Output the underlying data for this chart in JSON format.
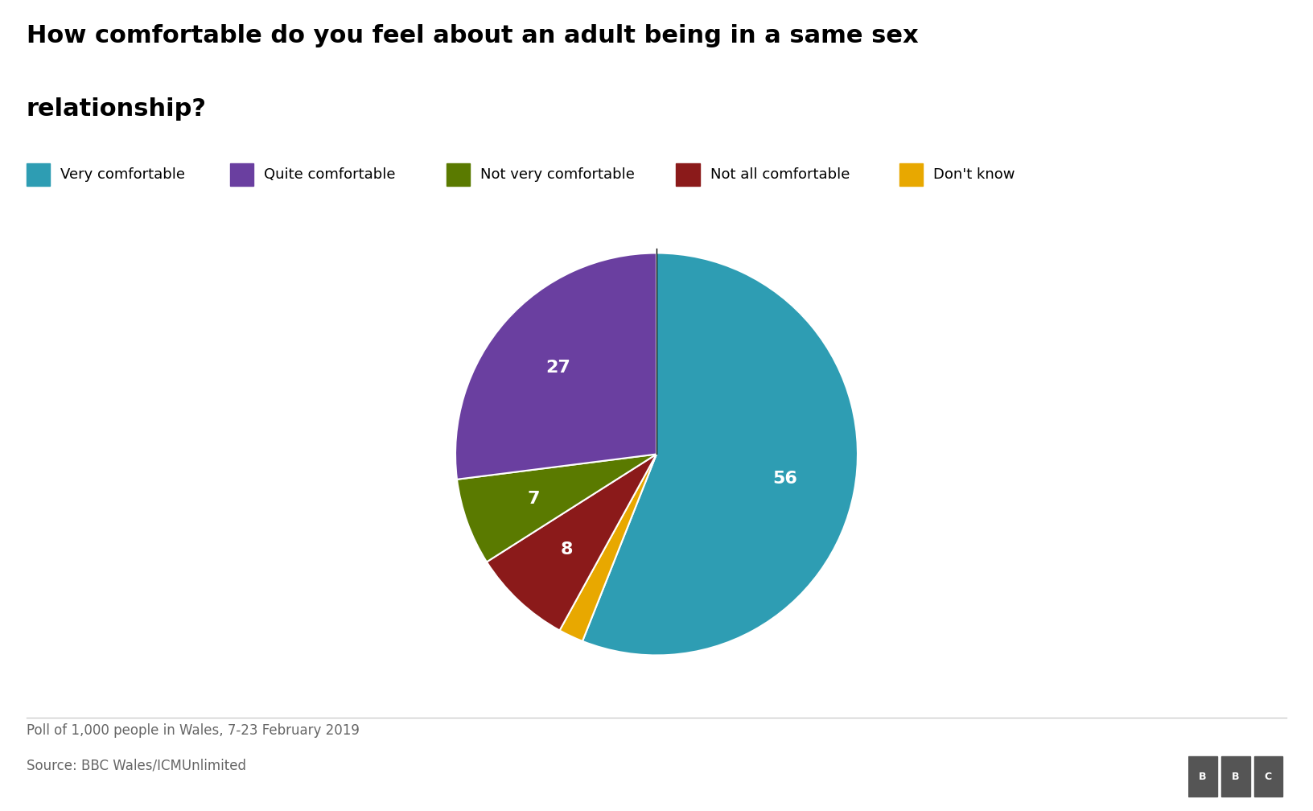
{
  "title_line1": "How comfortable do you feel about an adult being in a same sex",
  "title_line2": "relationship?",
  "labels": [
    "Very comfortable",
    "Quite comfortable",
    "Not very comfortable",
    "Not all comfortable",
    "Don't know"
  ],
  "colors": [
    "#2e9db3",
    "#6a3fa0",
    "#5a7a00",
    "#8b1a1a",
    "#e8a800"
  ],
  "plot_values": [
    56,
    27,
    7,
    8,
    2
  ],
  "plot_colors": [
    "#2e9db3",
    "#6a3fa0",
    "#5a7a00",
    "#8b1a1a",
    "#e8a800"
  ],
  "plot_labels_display": [
    "56",
    "27",
    "7",
    "8",
    ""
  ],
  "footnote": "Poll of 1,000 people in Wales, 7-23 February 2019",
  "source": "Source: BBC Wales/ICMUnlimited",
  "background_color": "#ffffff",
  "title_fontsize": 22,
  "legend_fontsize": 13,
  "label_fontsize": 16,
  "footnote_fontsize": 12
}
